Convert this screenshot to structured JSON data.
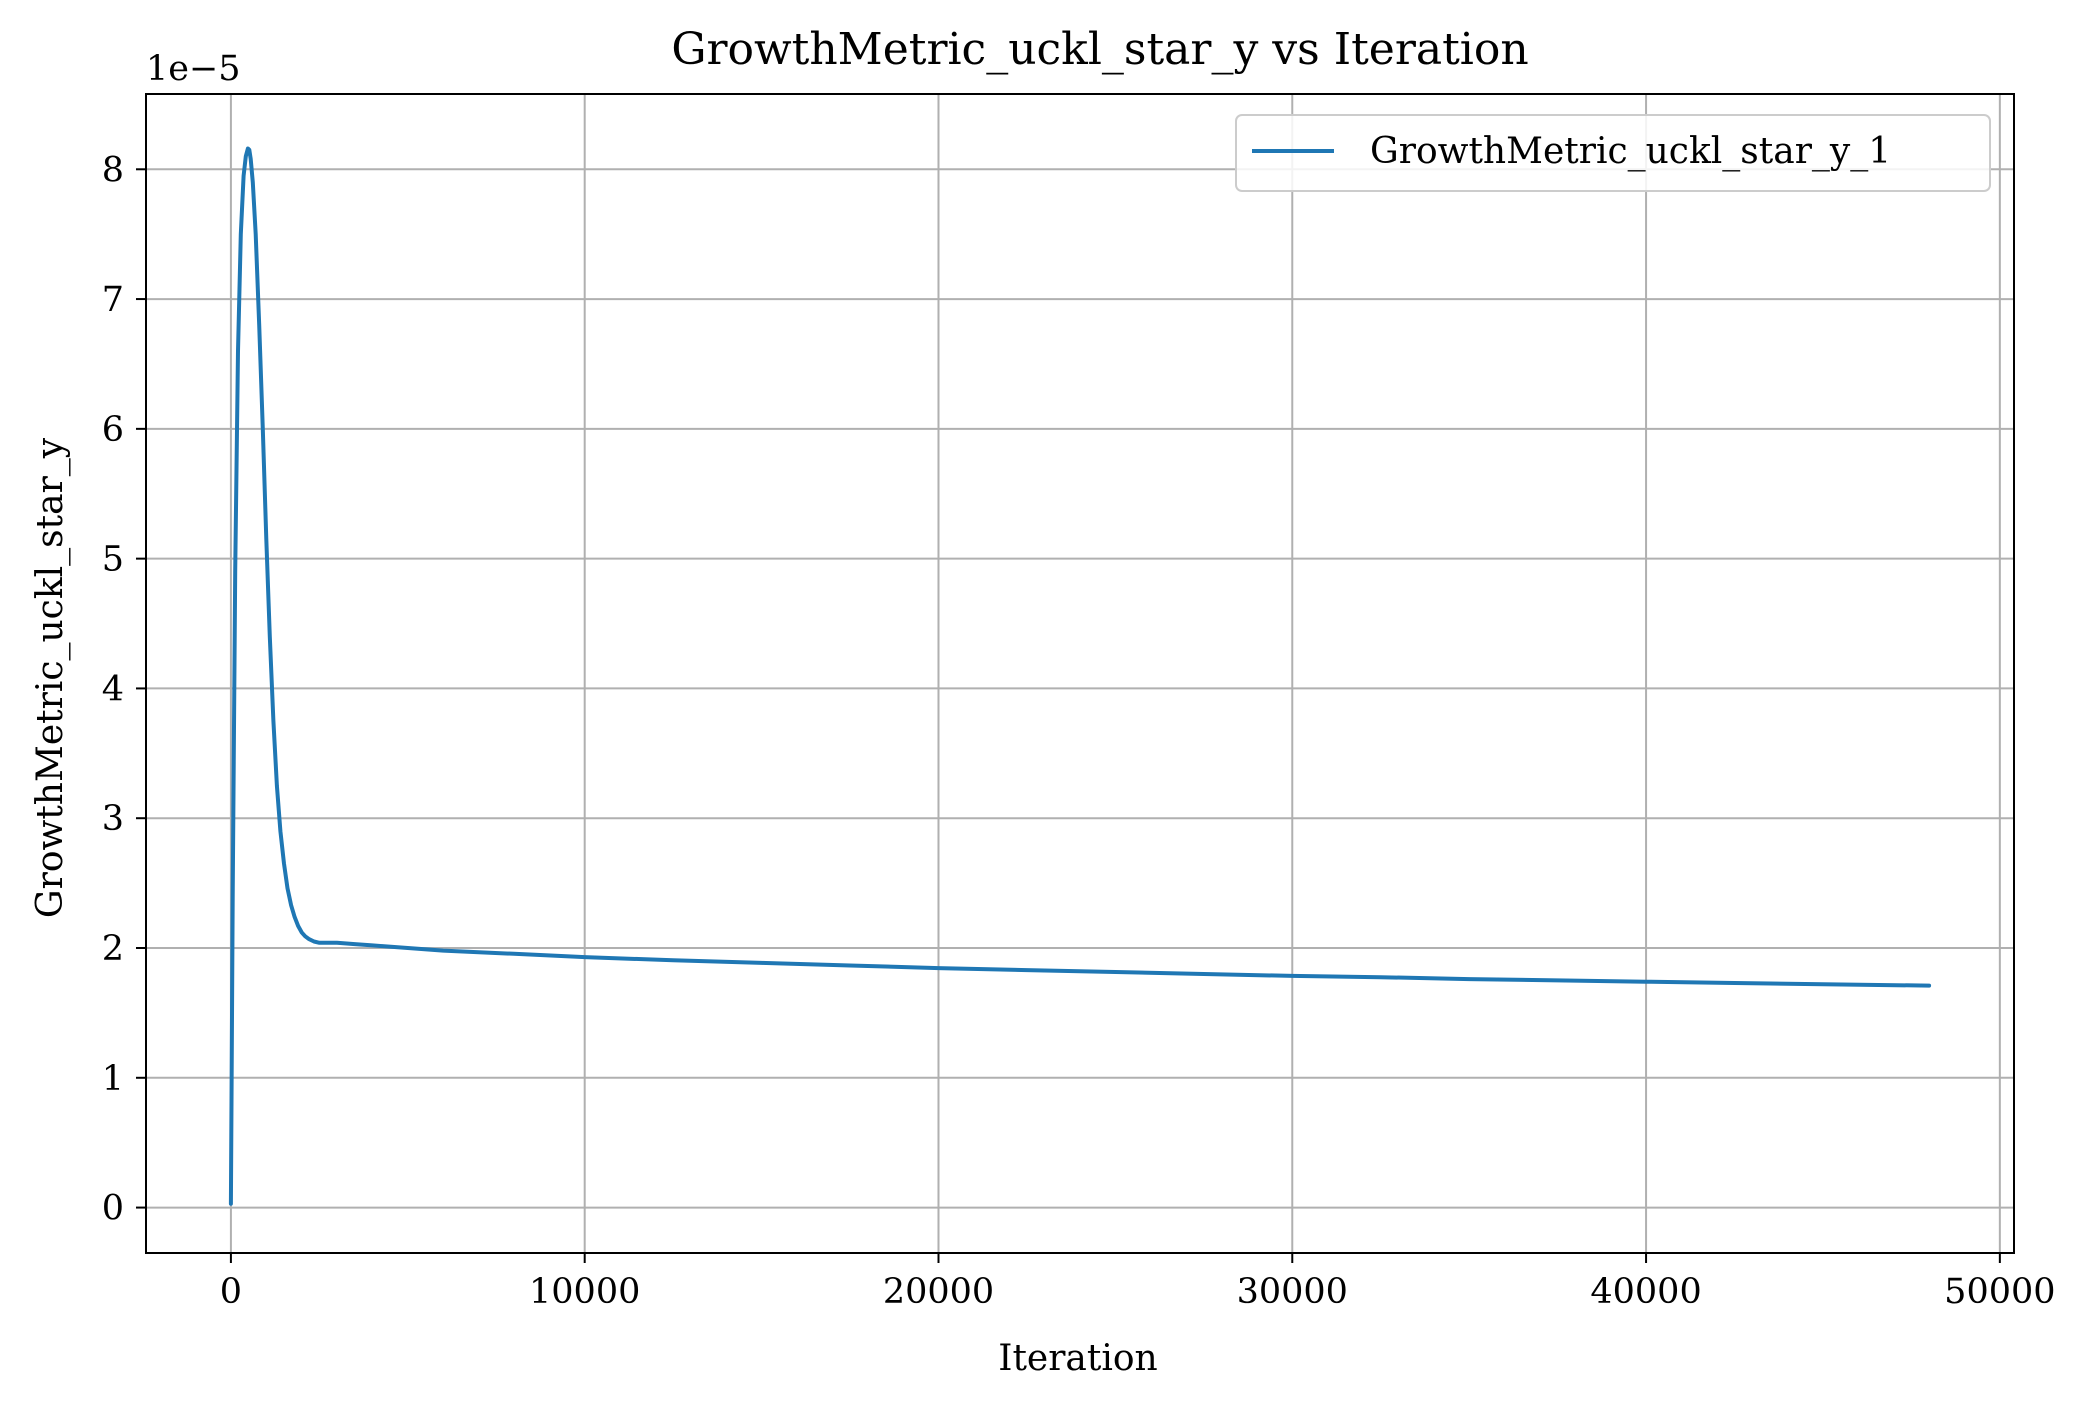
{
  "chart_data": {
    "type": "line",
    "title": "GrowthMetric_uckl_star_y vs Iteration",
    "xlabel": "Iteration",
    "ylabel": "GrowthMetric_uckl_star_y",
    "y_offset_label": "1e−5",
    "y_scale_factor": 1e-05,
    "xlim": [
      -2400,
      50400
    ],
    "ylim": [
      -0.35,
      8.58
    ],
    "x_ticks": [
      0,
      10000,
      20000,
      30000,
      40000,
      50000
    ],
    "x_tick_labels": [
      "0",
      "10000",
      "20000",
      "30000",
      "40000",
      "50000"
    ],
    "y_ticks": [
      0,
      1,
      2,
      3,
      4,
      5,
      6,
      7,
      8
    ],
    "y_tick_labels": [
      "0",
      "1",
      "2",
      "3",
      "4",
      "5",
      "6",
      "7",
      "8"
    ],
    "grid": true,
    "legend_position": "top-right",
    "colors": {
      "series": "#1f77b4",
      "grid": "#b0b0b0",
      "axes": "#000000"
    },
    "series": [
      {
        "name": "GrowthMetric_uckl_star_y_1",
        "x": [
          0,
          50,
          120,
          200,
          280,
          360,
          420,
          480,
          520,
          560,
          620,
          700,
          800,
          900,
          1000,
          1100,
          1200,
          1300,
          1400,
          1500,
          1600,
          1700,
          1800,
          1900,
          2000,
          2100,
          2200,
          2350,
          2500,
          2700,
          3000,
          3500,
          4000,
          5000,
          6000,
          8000,
          10000,
          12500,
          15000,
          17500,
          20000,
          22500,
          25000,
          27500,
          30000,
          32500,
          35000,
          37500,
          40000,
          42500,
          45000,
          48000
        ],
        "y": [
          0.03,
          2.4,
          4.9,
          6.6,
          7.5,
          7.95,
          8.1,
          8.16,
          8.15,
          8.08,
          7.9,
          7.5,
          6.8,
          6.0,
          5.15,
          4.4,
          3.75,
          3.25,
          2.9,
          2.65,
          2.46,
          2.33,
          2.24,
          2.17,
          2.12,
          2.09,
          2.07,
          2.05,
          2.04,
          2.04,
          2.04,
          2.03,
          2.02,
          2.0,
          1.98,
          1.955,
          1.93,
          1.905,
          1.885,
          1.865,
          1.845,
          1.83,
          1.815,
          1.8,
          1.785,
          1.775,
          1.76,
          1.75,
          1.74,
          1.73,
          1.72,
          1.71
        ]
      }
    ]
  }
}
